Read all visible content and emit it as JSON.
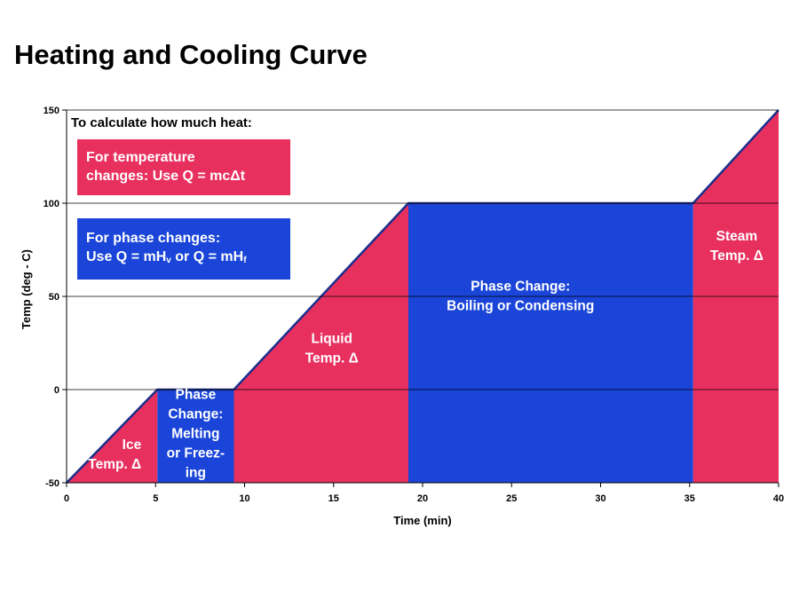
{
  "title": "Heating and Cooling Curve",
  "notes": {
    "heading": "To calculate how much heat:",
    "temp_line1": "For temperature",
    "temp_line2": "changes: Use Q = mcΔt",
    "phase_line1": "For phase changes:",
    "phase_line2_a": "Use Q = mH",
    "phase_line2_sub1": "v",
    "phase_line2_b": " or Q = mH",
    "phase_line2_sub2": "f"
  },
  "colors": {
    "temperature_region": "#e8305f",
    "phase_region": "#1a45d8",
    "curve": "#1c2e8c"
  },
  "chart_data": {
    "type": "area",
    "title": "Heating and Cooling Curve",
    "xlabel": "Time (min)",
    "ylabel": "Temp (deg - C)",
    "xlim": [
      0,
      40
    ],
    "ylim": [
      -50,
      150
    ],
    "xticks": [
      0,
      5,
      10,
      15,
      20,
      25,
      30,
      35,
      40
    ],
    "yticks": [
      -50,
      0,
      50,
      100,
      150
    ],
    "grid": "horizontal",
    "curve": {
      "x": [
        0,
        5.1,
        9.4,
        19.2,
        35.2,
        40
      ],
      "y": [
        -50,
        0,
        0,
        100,
        100,
        150
      ]
    },
    "regions": [
      {
        "type": "temperature",
        "x_start": 0,
        "x_end": 5.1,
        "label_lines": [
          "Ice",
          "Temp. Δ"
        ]
      },
      {
        "type": "phase",
        "x_start": 5.1,
        "x_end": 9.4,
        "label_lines": [
          "Phase",
          "Change:",
          "Melting",
          "or Freez-",
          "ing"
        ]
      },
      {
        "type": "temperature",
        "x_start": 9.4,
        "x_end": 19.2,
        "label_lines": [
          "Liquid",
          "Temp. Δ"
        ]
      },
      {
        "type": "phase",
        "x_start": 19.2,
        "x_end": 35.2,
        "label_lines": [
          "Phase Change:",
          "Boiling or Condensing"
        ]
      },
      {
        "type": "temperature",
        "x_start": 35.2,
        "x_end": 40,
        "label_lines": [
          "Steam",
          "Temp. Δ"
        ]
      }
    ]
  }
}
